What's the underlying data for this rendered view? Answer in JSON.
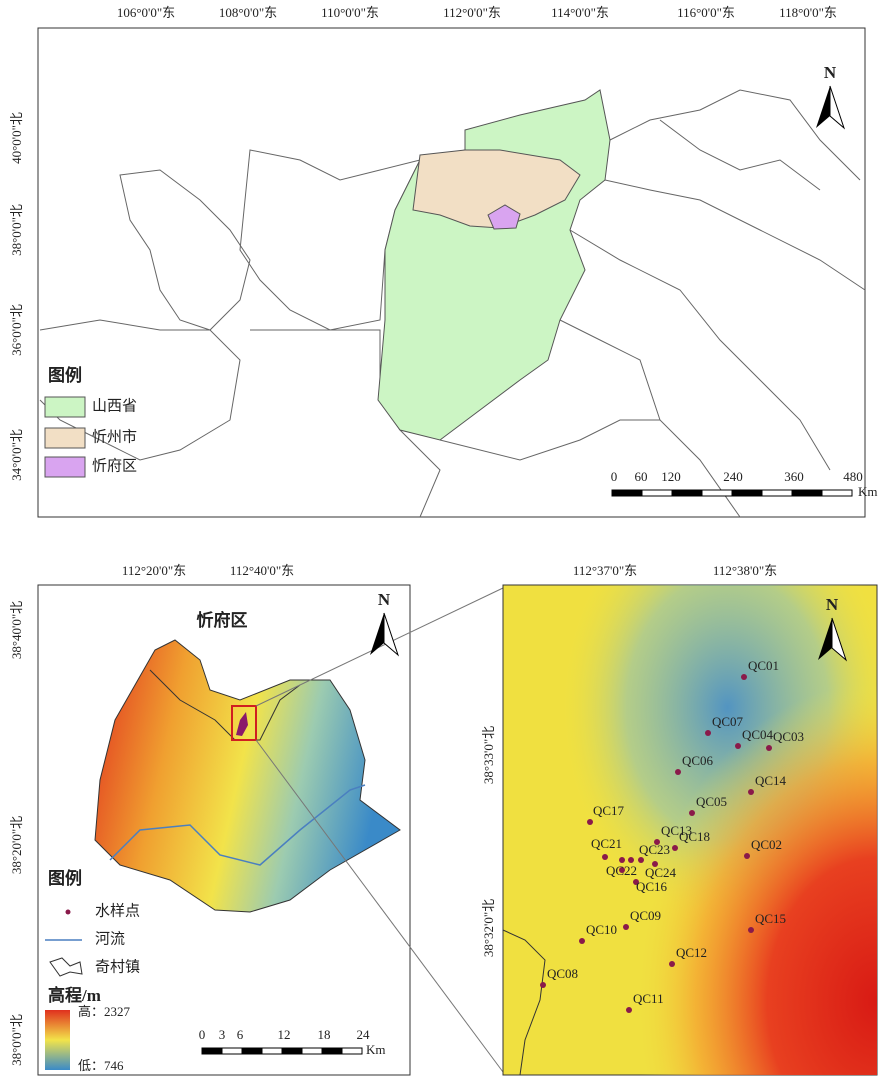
{
  "top_map": {
    "longitude_labels": [
      "106°0'0\"东",
      "108°0'0\"东",
      "110°0'0\"东",
      "112°0'0\"东",
      "114°0'0\"东",
      "116°0'0\"东",
      "118°0'0\"东"
    ],
    "latitude_labels": [
      "40°0'0\"北",
      "38°0'0\"北",
      "36°0'0\"北",
      "34°0'0\"北"
    ],
    "north": "N",
    "legend": {
      "title": "图例",
      "items": [
        "山西省",
        "忻州市",
        "忻府区"
      ]
    },
    "scale": {
      "ticks": [
        "0",
        "60",
        "120",
        "240",
        "360",
        "480"
      ],
      "unit": "Km"
    }
  },
  "district_map": {
    "title": "忻府区",
    "longitude_labels": [
      "112°20'0\"东",
      "112°40'0\"东"
    ],
    "latitude_labels": [
      "38°40'0\"北",
      "38°20'0\"北",
      "38°0'0\"北"
    ],
    "north": "N",
    "legend": {
      "title": "图例",
      "items": [
        "水样点",
        "河流",
        "奇村镇"
      ],
      "elevation_title": "高程/m",
      "high": "高：2327",
      "low": "低：746"
    },
    "scale": {
      "ticks": [
        "0",
        "3",
        "6",
        "12",
        "18",
        "24"
      ],
      "unit": "Km"
    }
  },
  "detail_map": {
    "longitude_labels": [
      "112°37'0\"东",
      "112°38'0\"东"
    ],
    "latitude_labels": [
      "38°33'0\"北",
      "38°32'0\"北"
    ],
    "north": "N",
    "sample_points": [
      "QC01",
      "QC07",
      "QC04",
      "QC03",
      "QC06",
      "QC14",
      "QC05",
      "QC17",
      "QC13",
      "QC18",
      "QC02",
      "QC21",
      "QC23",
      "QC22",
      "QC24",
      "QC16",
      "QC09",
      "QC10",
      "QC15",
      "QC12",
      "QC08",
      "QC11"
    ]
  }
}
